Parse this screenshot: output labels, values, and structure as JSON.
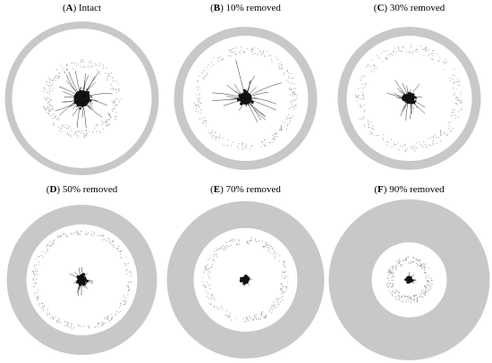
{
  "figure": {
    "panels": [
      {
        "letter": "A",
        "caption": "Intact",
        "removed_fraction": 0.0
      },
      {
        "letter": "B",
        "caption": "10% removed",
        "removed_fraction": 0.1
      },
      {
        "letter": "C",
        "caption": "30% removed",
        "removed_fraction": 0.3
      },
      {
        "letter": "D",
        "caption": "50% removed",
        "removed_fraction": 0.5
      },
      {
        "letter": "E",
        "caption": "70% removed",
        "removed_fraction": 0.7
      },
      {
        "letter": "F",
        "caption": "90% removed",
        "removed_fraction": 0.9
      }
    ],
    "colors": {
      "ring": "#c8c8c8",
      "dots": "#9a9a9a",
      "core": "#111111",
      "edges": "#333333"
    }
  }
}
